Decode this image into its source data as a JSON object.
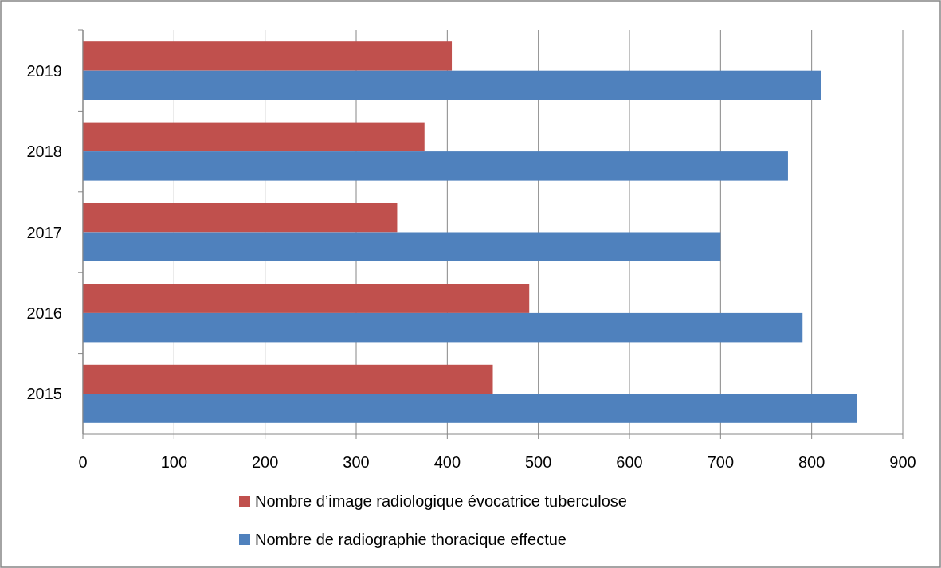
{
  "chart_data": {
    "type": "bar",
    "orientation": "horizontal",
    "categories": [
      "2019",
      "2018",
      "2017",
      "2016",
      "2015"
    ],
    "series": [
      {
        "name": "Nombre d’image radiologique évocatrice tuberculose",
        "color": "#c0504d",
        "values": [
          405,
          375,
          345,
          490,
          450
        ]
      },
      {
        "name": "Nombre de radiographie thoracique effectue",
        "color": "#4f81bd",
        "values": [
          810,
          774,
          700,
          790,
          850
        ]
      }
    ],
    "xlim": [
      0,
      900
    ],
    "xticks": [
      0,
      100,
      200,
      300,
      400,
      500,
      600,
      700,
      800,
      900
    ],
    "grid": "x",
    "legend": "bottom"
  }
}
